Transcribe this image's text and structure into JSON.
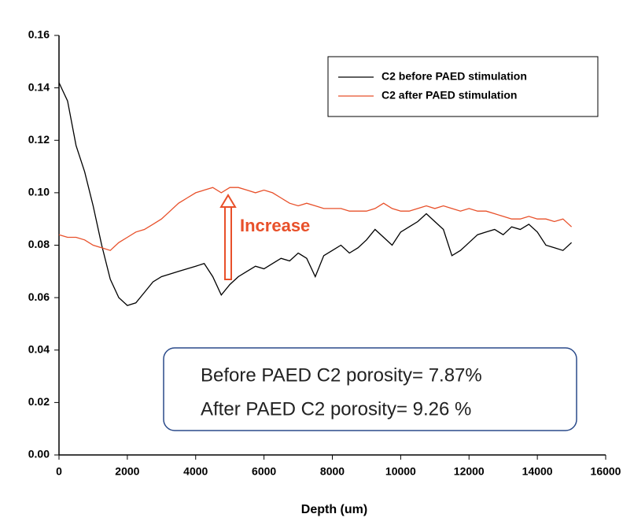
{
  "chart_data": {
    "type": "line",
    "x_label": "Depth (um)",
    "x": [
      0,
      250,
      500,
      750,
      1000,
      1250,
      1500,
      1750,
      2000,
      2250,
      2500,
      2750,
      3000,
      3250,
      3500,
      3750,
      4000,
      4250,
      4500,
      4750,
      5000,
      5250,
      5500,
      5750,
      6000,
      6250,
      6500,
      6750,
      7000,
      7250,
      7500,
      7750,
      8000,
      8250,
      8500,
      8750,
      9000,
      9250,
      9500,
      9750,
      10000,
      10250,
      10500,
      10750,
      11000,
      11250,
      11500,
      11750,
      12000,
      12250,
      12500,
      12750,
      13000,
      13250,
      13500,
      13750,
      14000,
      14250,
      14500,
      14750,
      15000
    ],
    "series": [
      {
        "name": "C2 before PAED stimulation",
        "color": "#000000",
        "values": [
          0.142,
          0.135,
          0.118,
          0.108,
          0.095,
          0.08,
          0.067,
          0.06,
          0.057,
          0.058,
          0.062,
          0.066,
          0.068,
          0.069,
          0.07,
          0.071,
          0.072,
          0.073,
          0.068,
          0.061,
          0.065,
          0.068,
          0.07,
          0.072,
          0.071,
          0.073,
          0.075,
          0.074,
          0.077,
          0.075,
          0.068,
          0.076,
          0.078,
          0.08,
          0.077,
          0.079,
          0.082,
          0.086,
          0.083,
          0.08,
          0.085,
          0.087,
          0.089,
          0.092,
          0.089,
          0.086,
          0.076,
          0.078,
          0.081,
          0.084,
          0.085,
          0.086,
          0.084,
          0.087,
          0.086,
          0.088,
          0.085,
          0.08,
          0.079,
          0.078,
          0.081
        ]
      },
      {
        "name": "C2 after PAED stimulation",
        "color": "#e8502a",
        "values": [
          0.084,
          0.083,
          0.083,
          0.082,
          0.08,
          0.079,
          0.078,
          0.081,
          0.083,
          0.085,
          0.086,
          0.088,
          0.09,
          0.093,
          0.096,
          0.098,
          0.1,
          0.101,
          0.102,
          0.1,
          0.102,
          0.102,
          0.101,
          0.1,
          0.101,
          0.1,
          0.098,
          0.096,
          0.095,
          0.096,
          0.095,
          0.094,
          0.094,
          0.094,
          0.093,
          0.093,
          0.093,
          0.094,
          0.096,
          0.094,
          0.093,
          0.093,
          0.094,
          0.095,
          0.094,
          0.095,
          0.094,
          0.093,
          0.094,
          0.093,
          0.093,
          0.092,
          0.091,
          0.09,
          0.09,
          0.091,
          0.09,
          0.09,
          0.089,
          0.09,
          0.087
        ]
      }
    ],
    "xlim": [
      0,
      16000
    ],
    "xticks": [
      0,
      2000,
      4000,
      6000,
      8000,
      10000,
      12000,
      14000,
      16000
    ],
    "ylim": [
      0,
      0.16
    ],
    "yticks": [
      {
        "value": 0,
        "label": "0.00"
      },
      0.02,
      0.04,
      0.06,
      0.08,
      {
        "value": 0.1,
        "label": "0.10"
      },
      0.12,
      0.14,
      0.16
    ],
    "legend": "upper right",
    "annotations": [
      "Increase",
      "Before PAED C2 porosity= 7.87%",
      "After PAED C2 porosity= 9.26 %"
    ]
  }
}
